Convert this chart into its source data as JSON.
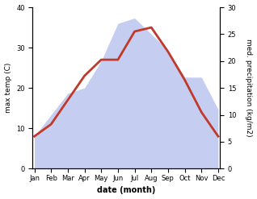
{
  "months": [
    "Jan",
    "Feb",
    "Mar",
    "Apr",
    "May",
    "Jun",
    "Jul",
    "Aug",
    "Sep",
    "Oct",
    "Nov",
    "Dec"
  ],
  "x": [
    0,
    1,
    2,
    3,
    4,
    5,
    6,
    7,
    8,
    9,
    10,
    11
  ],
  "temp": [
    8,
    11,
    17,
    23,
    27,
    27,
    34,
    35,
    29,
    22,
    14,
    8
  ],
  "precip": [
    6,
    10,
    14,
    15,
    20,
    27,
    28,
    25,
    22,
    17,
    17,
    11
  ],
  "temp_color": "#c0392b",
  "precip_fill_color": "#c5cef0",
  "temp_ylim": [
    0,
    40
  ],
  "precip_ylim": [
    0,
    30
  ],
  "xlabel": "date (month)",
  "ylabel_left": "max temp (C)",
  "ylabel_right": "med. precipitation (kg/m2)",
  "temp_linewidth": 2.0,
  "xlabel_fontsize": 7,
  "ylabel_fontsize": 6.5,
  "tick_fontsize": 6,
  "background_color": "#ffffff"
}
